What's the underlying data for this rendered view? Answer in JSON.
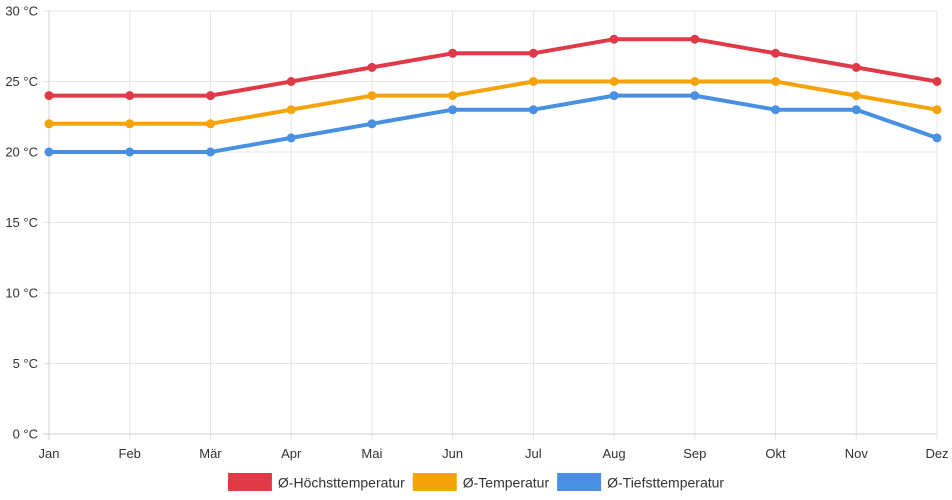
{
  "chart_data": {
    "type": "line",
    "title": "",
    "xlabel": "",
    "ylabel": "",
    "categories": [
      "Jan",
      "Feb",
      "Mär",
      "Apr",
      "Mai",
      "Jun",
      "Jul",
      "Aug",
      "Sep",
      "Okt",
      "Nov",
      "Dez"
    ],
    "y_ticks": [
      0,
      5,
      10,
      15,
      20,
      25,
      30
    ],
    "y_unit": " °C",
    "ylim": [
      0,
      30
    ],
    "grid": true,
    "legend_position": "bottom-center",
    "series": [
      {
        "key": "max",
        "name": "Ø-Höchsttemperatur",
        "color": "#E03A48",
        "values": [
          24,
          24,
          24,
          25,
          26,
          27,
          27,
          28,
          28,
          27,
          26,
          25
        ]
      },
      {
        "key": "avg",
        "name": "Ø-Temperatur",
        "color": "#F5A30A",
        "values": [
          22,
          22,
          22,
          23,
          24,
          24,
          25,
          25,
          25,
          25,
          24,
          23
        ]
      },
      {
        "key": "min",
        "name": "Ø-Tiefsttemperatur",
        "color": "#4A90E2",
        "values": [
          20,
          20,
          20,
          21,
          22,
          23,
          23,
          24,
          24,
          23,
          23,
          21
        ]
      }
    ]
  }
}
